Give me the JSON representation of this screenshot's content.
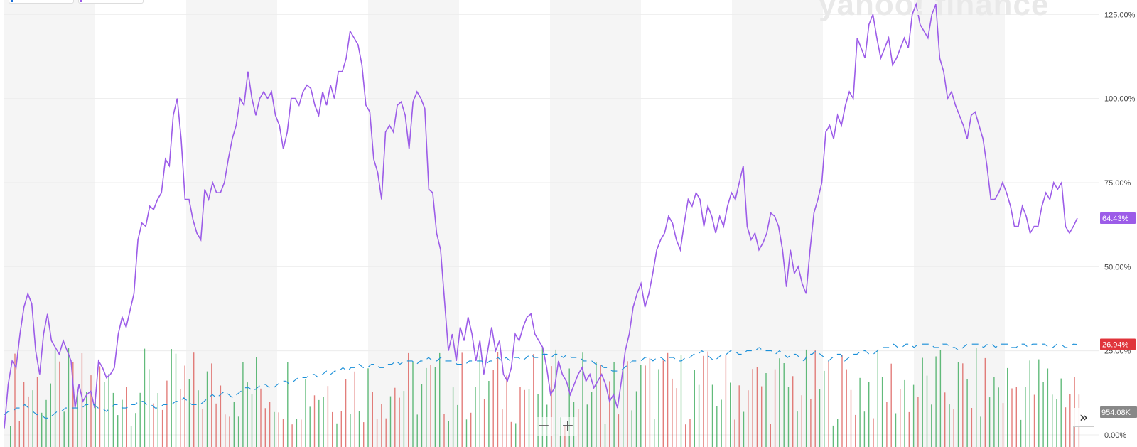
{
  "watermark": "yahoo! finance",
  "chart_data": {
    "type": "line",
    "y_axis": {
      "ticks": [
        "125.00%",
        "100.00%",
        "75.00%",
        "50.00%",
        "25.00%",
        "0.00%"
      ],
      "ylim": [
        0,
        125
      ],
      "position": "right"
    },
    "series": [
      {
        "color": "#9c5ce8",
        "last_value_label": "64.43%",
        "values": [
          2,
          15,
          22,
          20,
          30,
          38,
          42,
          39,
          25,
          18,
          30,
          36,
          28,
          26,
          24,
          28,
          25,
          22,
          8,
          15,
          10,
          12,
          13,
          8,
          22,
          20,
          17,
          18,
          20,
          30,
          35,
          32,
          37,
          42,
          58,
          63,
          62,
          68,
          67,
          70,
          72,
          82,
          80,
          95,
          100,
          88,
          70,
          70,
          64,
          60,
          58,
          73,
          70,
          75,
          72,
          72,
          75,
          82,
          88,
          92,
          100,
          98,
          108,
          100,
          95,
          100,
          102,
          100,
          102,
          95,
          92,
          85,
          90,
          100,
          100,
          98,
          102,
          104,
          103,
          98,
          95,
          102,
          98,
          104,
          100,
          108,
          108,
          112,
          120,
          118,
          116,
          110,
          98,
          96,
          82,
          78,
          70,
          90,
          92,
          90,
          98,
          99,
          95,
          85,
          99,
          102,
          100,
          97,
          73,
          72,
          60,
          55,
          40,
          25,
          30,
          22,
          32,
          28,
          35,
          30,
          22,
          28,
          18,
          25,
          32,
          25,
          28,
          18,
          16,
          20,
          30,
          28,
          32,
          35,
          36,
          30,
          28,
          26,
          20,
          12,
          14,
          22,
          18,
          16,
          12,
          15,
          18,
          20,
          16,
          18,
          14,
          16,
          18,
          15,
          10,
          12,
          8,
          16,
          25,
          30,
          38,
          42,
          45,
          38,
          42,
          48,
          55,
          58,
          60,
          65,
          63,
          58,
          55,
          63,
          70,
          68,
          72,
          70,
          62,
          68,
          65,
          60,
          65,
          62,
          68,
          72,
          70,
          75,
          80,
          62,
          58,
          60,
          55,
          57,
          60,
          66,
          65,
          62,
          55,
          44,
          55,
          48,
          50,
          45,
          42,
          55,
          66,
          70,
          75,
          90,
          92,
          88,
          95,
          92,
          98,
          102,
          100,
          118,
          115,
          112,
          122,
          125,
          118,
          112,
          115,
          118,
          110,
          112,
          115,
          118,
          115,
          125,
          128,
          122,
          120,
          118,
          125,
          128,
          112,
          108,
          100,
          102,
          98,
          95,
          92,
          88,
          95,
          96,
          92,
          88,
          80,
          70,
          70,
          72,
          75,
          72,
          68,
          62,
          62,
          68,
          65,
          60,
          62,
          62,
          68,
          72,
          70,
          75,
          73,
          75,
          62,
          60,
          62,
          64.43
        ]
      },
      {
        "color": "#1a8fd8",
        "last_value_label": "26.94%",
        "values": [
          6,
          7,
          7,
          8,
          8,
          9,
          8,
          7,
          6,
          6,
          5,
          5,
          6,
          7,
          7,
          8,
          8,
          8,
          8,
          8,
          9,
          9,
          9,
          8,
          8,
          7,
          8,
          9,
          9,
          8,
          8,
          9,
          9,
          10,
          10,
          9,
          9,
          8,
          8,
          9,
          9,
          9,
          10,
          10,
          11,
          10,
          9,
          9,
          9,
          10,
          11,
          12,
          11,
          12,
          13,
          12,
          11,
          12,
          13,
          14,
          14,
          13,
          14,
          15,
          15,
          14,
          14,
          15,
          16,
          16,
          15,
          16,
          17,
          17,
          17,
          18,
          18,
          17,
          18,
          19,
          18,
          19,
          19,
          20,
          19,
          20,
          20,
          21,
          20,
          20,
          21,
          21,
          20,
          20,
          21,
          21,
          22,
          21,
          22,
          22,
          22,
          21,
          22,
          22,
          23,
          22,
          22,
          23,
          22,
          22,
          22,
          21,
          21,
          21,
          22,
          22,
          22,
          22,
          21,
          22,
          22,
          23,
          22,
          23,
          22,
          23,
          23,
          22,
          23,
          24,
          23,
          23,
          24,
          24,
          23,
          24,
          24,
          23,
          24,
          23,
          23,
          23,
          22,
          22,
          22,
          21,
          21,
          20,
          20,
          19,
          19,
          19,
          20,
          21,
          22,
          22,
          22,
          23,
          23,
          22,
          23,
          23,
          22,
          23,
          23,
          22,
          22,
          23,
          23,
          24,
          24,
          25,
          24,
          23,
          22,
          23,
          24,
          24,
          25,
          25,
          24,
          24,
          25,
          25,
          25,
          26,
          25,
          25,
          25,
          24,
          25,
          24,
          23,
          24,
          24,
          23,
          22,
          24,
          24,
          25,
          24,
          23,
          22,
          23,
          24,
          24,
          22,
          23,
          24,
          24,
          25,
          25,
          24,
          24,
          25,
          26,
          26,
          26,
          27,
          26,
          26,
          27,
          27,
          26,
          27,
          27,
          27,
          27,
          26,
          26,
          27,
          27,
          26,
          26,
          25,
          26,
          27,
          27,
          27,
          27,
          26,
          27,
          27,
          26,
          27,
          27,
          27,
          26,
          26,
          27,
          27,
          26,
          27,
          27,
          27,
          27,
          26,
          26,
          27,
          27,
          26,
          26,
          27,
          26.94
        ]
      }
    ],
    "volume": {
      "label": "954.08K",
      "colors": [
        "#2ea44f",
        "#d9534f"
      ]
    }
  },
  "controls": {
    "zoom_out": "−",
    "zoom_in": "+",
    "expand": "»"
  }
}
